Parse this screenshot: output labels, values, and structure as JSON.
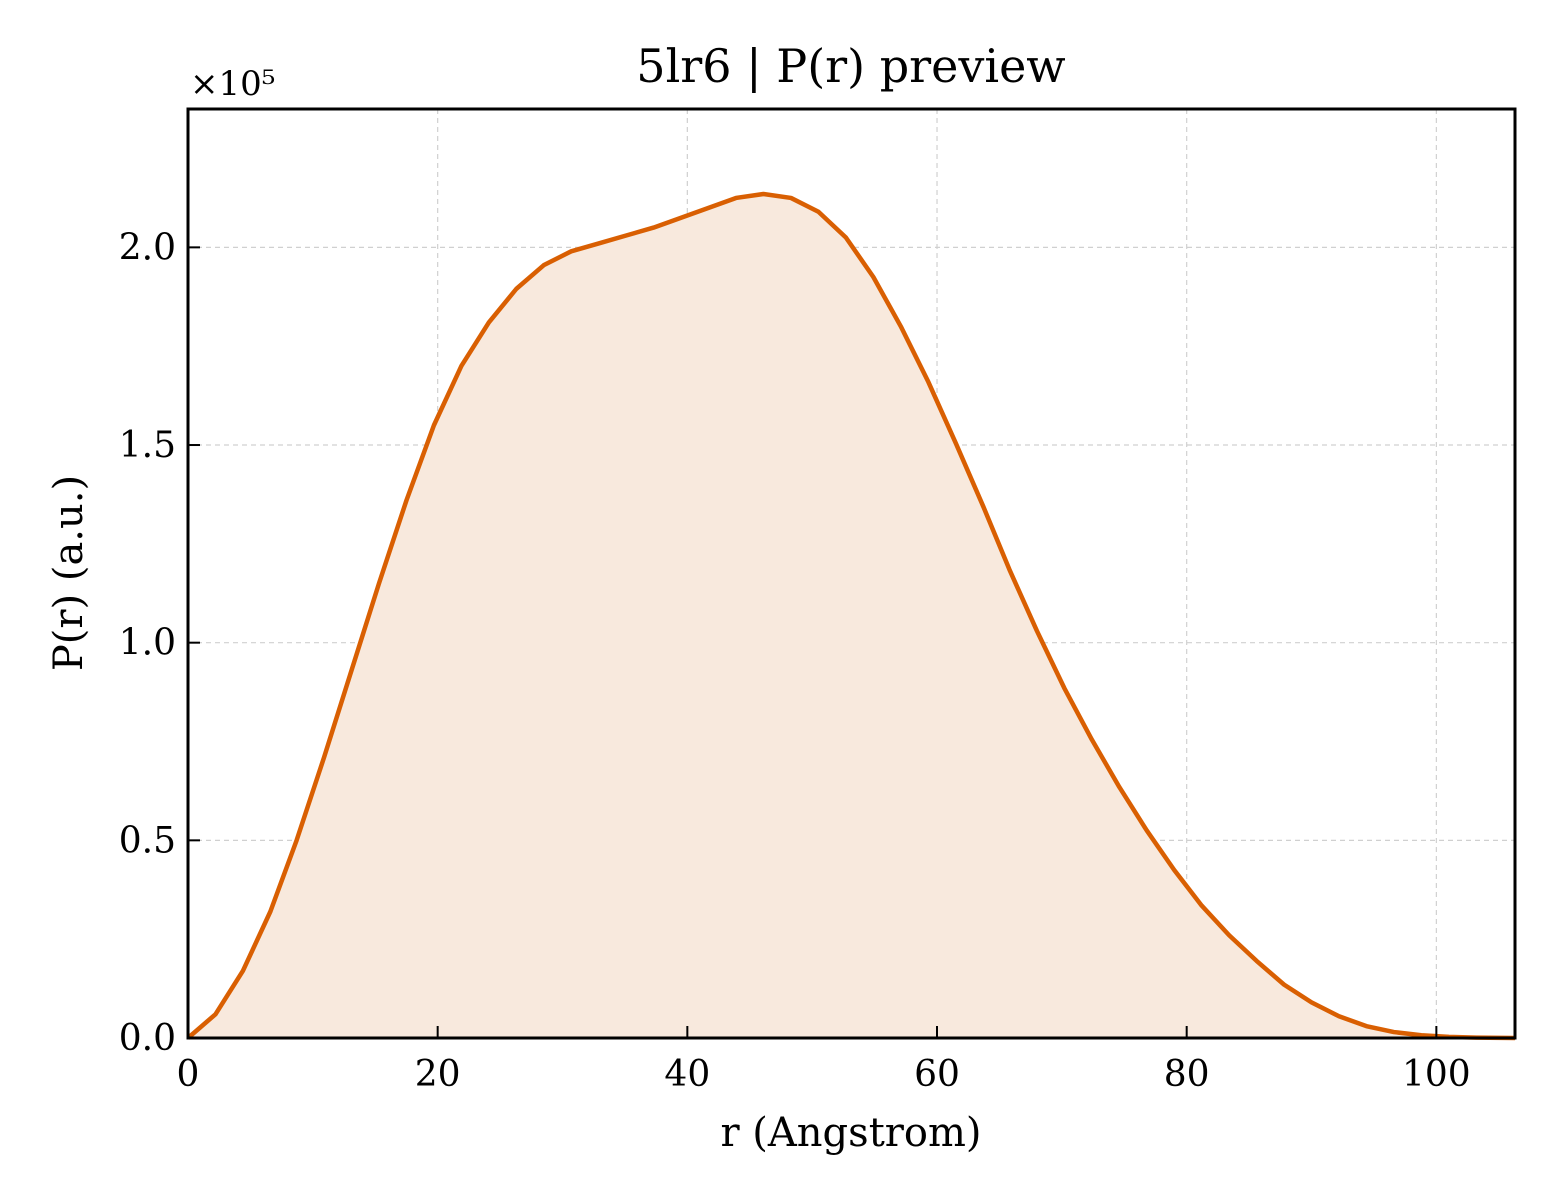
{
  "chart_data": {
    "type": "area",
    "title": "5lr6 | P(r) preview",
    "xlabel": "r (Angstrom)",
    "ylabel": "P(r) (a.u.)",
    "y_offset_label": "×10⁵",
    "y_scale": 100000,
    "xlim": [
      0,
      106.3
    ],
    "ylim": [
      0,
      2.35
    ],
    "x_ticks": [
      0,
      20,
      40,
      60,
      80,
      100
    ],
    "y_ticks": [
      0.0,
      0.5,
      1.0,
      1.5,
      2.0
    ],
    "y_tick_labels": [
      "0.0",
      "0.5",
      "1.0",
      "1.5",
      "2.0"
    ],
    "grid": true,
    "colors": {
      "line": "#d95f02",
      "fill": "#f8e9dd"
    },
    "series": [
      {
        "x": [
          0,
          2.2,
          4.4,
          6.6,
          8.7,
          10.9,
          13.1,
          15.3,
          17.5,
          19.7,
          21.9,
          24.1,
          26.3,
          28.5,
          30.7,
          32.9,
          35.1,
          37.3,
          39.5,
          41.7,
          43.9,
          46.1,
          48.3,
          50.5,
          52.7,
          54.9,
          57.1,
          59.3,
          61.5,
          63.7,
          65.8,
          68.0,
          70.2,
          72.4,
          74.6,
          76.8,
          79.0,
          81.2,
          83.4,
          85.6,
          87.8,
          90.0,
          92.2,
          94.4,
          96.6,
          98.8,
          101.0,
          103.2,
          106.3
        ],
        "y": [
          0.0,
          0.06,
          0.17,
          0.32,
          0.5,
          0.71,
          0.93,
          1.15,
          1.36,
          1.55,
          1.7,
          1.81,
          1.895,
          1.955,
          1.99,
          2.01,
          2.03,
          2.05,
          2.075,
          2.1,
          2.125,
          2.135,
          2.125,
          2.09,
          2.025,
          1.925,
          1.8,
          1.66,
          1.505,
          1.345,
          1.185,
          1.03,
          0.885,
          0.755,
          0.635,
          0.525,
          0.425,
          0.335,
          0.26,
          0.195,
          0.135,
          0.09,
          0.055,
          0.03,
          0.015,
          0.007,
          0.003,
          0.001,
          0.0
        ]
      }
    ]
  }
}
